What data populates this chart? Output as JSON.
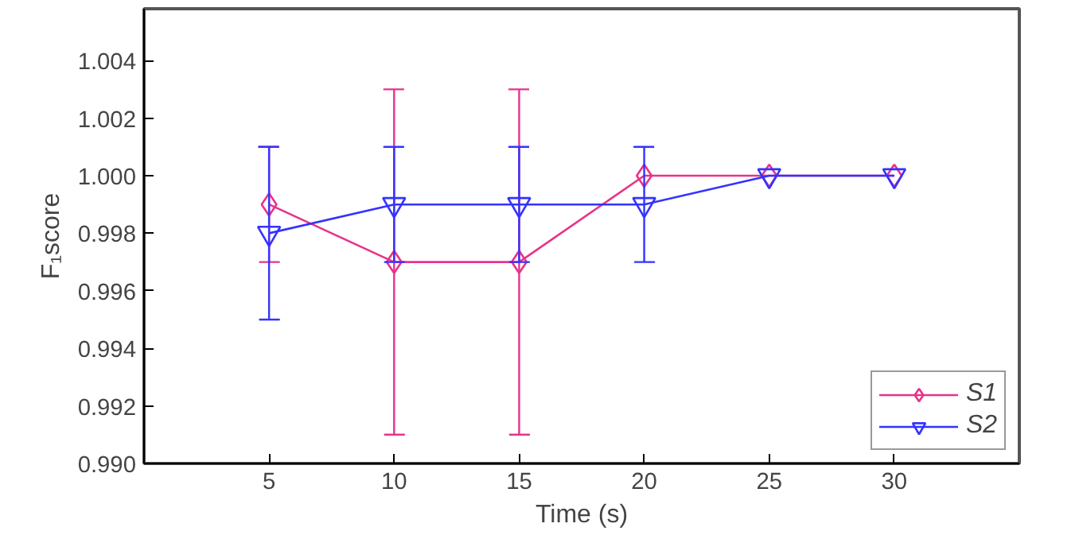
{
  "chart_data": {
    "type": "line",
    "xlabel": "Time (s)",
    "ylabel": "F₁score",
    "x": [
      5,
      10,
      15,
      20,
      25,
      30
    ],
    "series": [
      {
        "name": "S1",
        "color": "#e8338a",
        "marker": "diamond",
        "values": [
          0.999,
          0.997,
          0.997,
          1.0,
          1.0,
          1.0
        ],
        "errors": [
          0.002,
          0.006,
          0.006,
          null,
          null,
          null
        ]
      },
      {
        "name": "S2",
        "color": "#3333ff",
        "marker": "triangle",
        "values": [
          0.998,
          0.999,
          0.999,
          0.999,
          1.0,
          1.0
        ],
        "errors": [
          0.003,
          0.002,
          0.002,
          0.002,
          null,
          null
        ]
      }
    ],
    "xlim": [
      0,
      35
    ],
    "xticks": [
      5,
      10,
      15,
      20,
      25,
      30
    ],
    "ylim": [
      0.99,
      1.0058
    ],
    "yticks": [
      {
        "value": 0.99,
        "label": "0.990"
      },
      {
        "value": 0.992,
        "label": "0.992"
      },
      {
        "value": 0.994,
        "label": "0.994"
      },
      {
        "value": 0.996,
        "label": "0.996"
      },
      {
        "value": 0.998,
        "label": "0.998"
      },
      {
        "value": 1.0,
        "label": "1.000"
      },
      {
        "value": 1.002,
        "label": "1.002"
      },
      {
        "value": 1.004,
        "label": "1.004"
      }
    ],
    "grid": false,
    "legend": "bottom right",
    "line_style": "solid"
  }
}
